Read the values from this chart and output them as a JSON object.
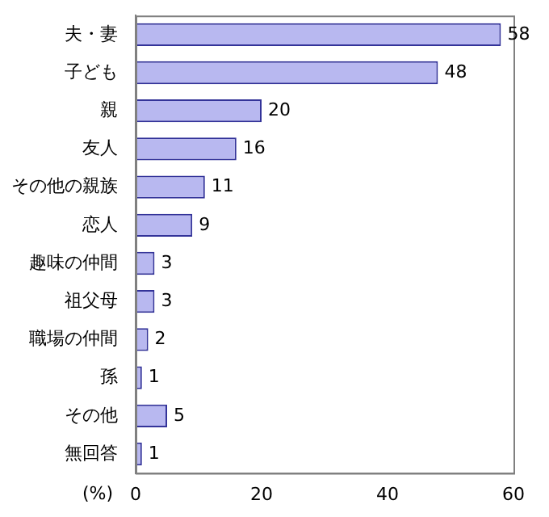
{
  "chart_data": {
    "type": "bar",
    "orientation": "horizontal",
    "xlabel": "(%)",
    "categories": [
      "夫・妻",
      "子ども",
      "親",
      "友人",
      "その他の親族",
      "恋人",
      "趣味の仲間",
      "祖父母",
      "職場の仲間",
      "孫",
      "その他",
      "無回答"
    ],
    "values": [
      58,
      48,
      20,
      16,
      11,
      9,
      3,
      3,
      2,
      1,
      5,
      1
    ],
    "color": "#b8b8f0",
    "xlim": [
      0,
      60
    ],
    "xticks": [
      0,
      20,
      40,
      60
    ],
    "grid": false,
    "legend": false,
    "data_labels": true
  }
}
